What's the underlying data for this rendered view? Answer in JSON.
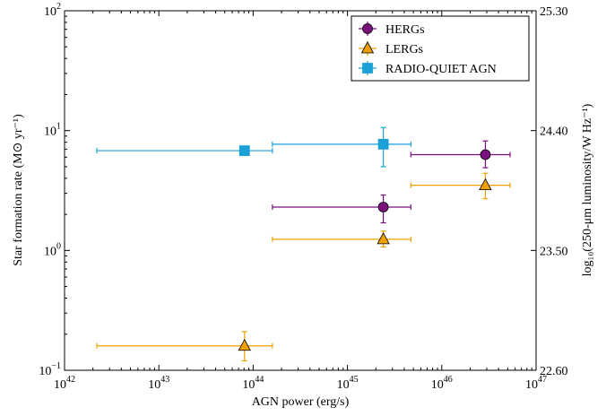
{
  "chart_data": {
    "type": "scatter",
    "xlabel": "AGN power (erg/s)",
    "ylabel": "Star formation rate (M⊙ yr⁻¹)",
    "y2label": "log₁₀(250-μm luminosity/W Hz⁻¹)",
    "xscale": "log",
    "yscale": "log",
    "xlim": [
      1e+42,
      1e+47
    ],
    "ylim": [
      0.1,
      100
    ],
    "y2lim": [
      22.6,
      25.3
    ],
    "xticks": [
      {
        "value": 1e+42,
        "label": "10",
        "exponent": "42"
      },
      {
        "value": 1e+43,
        "label": "10",
        "exponent": "43"
      },
      {
        "value": 1e+44,
        "label": "10",
        "exponent": "44"
      },
      {
        "value": 1e+45,
        "label": "10",
        "exponent": "45"
      },
      {
        "value": 1e+46,
        "label": "10",
        "exponent": "46"
      },
      {
        "value": 1e+47,
        "label": "10",
        "exponent": "47"
      }
    ],
    "yticks": [
      {
        "value": 0.1,
        "label": "10",
        "exponent": "−1"
      },
      {
        "value": 1,
        "label": "10",
        "exponent": "0"
      },
      {
        "value": 10,
        "label": "10",
        "exponent": "1"
      },
      {
        "value": 100,
        "label": "10",
        "exponent": "2"
      }
    ],
    "y2ticks": [
      {
        "value": 22.6,
        "label": "22.60"
      },
      {
        "value": 23.5,
        "label": "23.50"
      },
      {
        "value": 24.4,
        "label": "24.40"
      },
      {
        "value": 25.3,
        "label": "25.30"
      }
    ],
    "legend": "upper right",
    "series": [
      {
        "name": "HERGs",
        "color": "#7b0f7b",
        "marker": "circle",
        "x": [
          2.4e+45,
          2.9e+46
        ],
        "values": [
          2.3,
          6.3
        ],
        "x_low": [
          1.6e+44,
          4.7e+45
        ],
        "x_high": [
          4.7e+45,
          5.3e+46
        ],
        "y_low": [
          1.7,
          4.9
        ],
        "y_high": [
          2.9,
          8.2
        ]
      },
      {
        "name": "LERGs",
        "color": "#f0a000",
        "marker": "triangle",
        "x": [
          2.4e+45,
          2.9e+46,
          8.1e+43
        ],
        "values": [
          1.24,
          3.5,
          0.16
        ],
        "x_low": [
          1.6e+44,
          4.7e+45,
          2.2e+42
        ],
        "x_high": [
          4.7e+45,
          5.3e+46,
          1.6e+44
        ],
        "y_low": [
          1.07,
          2.7,
          0.12
        ],
        "y_high": [
          1.45,
          4.4,
          0.21
        ]
      },
      {
        "name": "RADIO-QUIET AGN",
        "color": "#1ba0d8",
        "marker": "square",
        "x": [
          8.1e+43,
          2.4e+45
        ],
        "values": [
          6.8,
          7.7
        ],
        "x_low": [
          2.2e+42,
          1.6e+44
        ],
        "x_high": [
          1.6e+44,
          4.7e+45
        ],
        "y_low": [
          6.8,
          5.0
        ],
        "y_high": [
          6.8,
          10.6
        ]
      }
    ]
  }
}
